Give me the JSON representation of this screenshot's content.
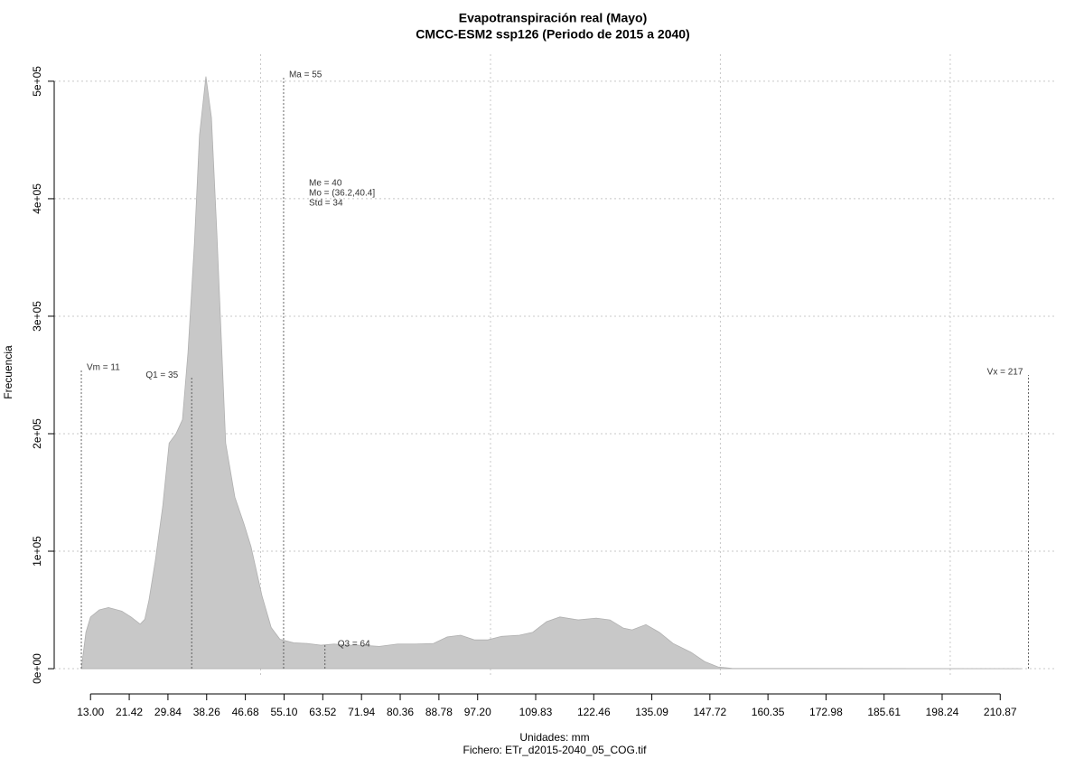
{
  "chart_data": {
    "type": "area",
    "title": "Evapotranspiración real (Mayo)",
    "subtitle": "CMCC-ESM2 ssp126 (Periodo de 2015 a 2040)",
    "xlabel": "Unidades: mm",
    "caption": "Fichero: ETr_d2015-2040_05_COG.tif",
    "ylabel": "Frecuencia",
    "color": "#c8c8c8",
    "x": [
      11,
      12,
      13,
      14.9,
      16.9,
      19.8,
      21.8,
      23.8,
      24.8,
      25.7,
      27.1,
      28.7,
      30.1,
      31.6,
      33.0,
      34.2,
      35.6,
      36.7,
      38.1,
      39.3,
      40.5,
      42.4,
      44.4,
      46.4,
      47.9,
      50.3,
      52.3,
      54.2,
      57.2,
      60.1,
      63.1,
      66.0,
      69.0,
      71.9,
      75.8,
      79.8,
      83.7,
      87.6,
      90.6,
      93.5,
      96.5,
      99.4,
      102.4,
      106.3,
      109.2,
      112.2,
      115.1,
      119.1,
      123.0,
      126.0,
      128.9,
      130.8,
      133.8,
      136.7,
      139.7,
      143.6,
      146.6,
      149.5,
      152.5,
      215.3
    ],
    "values": [
      0,
      31000,
      44000,
      50000,
      52000,
      49000,
      44000,
      38000,
      42000,
      58000,
      92000,
      138000,
      192000,
      200000,
      212000,
      269000,
      362000,
      454000,
      504000,
      469000,
      369000,
      192000,
      146000,
      123000,
      104000,
      62000,
      35000,
      25000,
      22000,
      21500,
      20000,
      21000,
      20000,
      20000,
      19000,
      21000,
      21000,
      21500,
      27000,
      28500,
      24500,
      24500,
      27500,
      28500,
      31000,
      40000,
      44000,
      41500,
      43000,
      41500,
      34500,
      33000,
      37500,
      31000,
      21500,
      14000,
      6000,
      1500,
      300,
      0
    ],
    "xlim": [
      5.1,
      223.2
    ],
    "ylim": [
      -21500,
      523000
    ],
    "xticks": [
      {
        "value": 13.0,
        "label": "13.00"
      },
      21.42,
      29.84,
      38.26,
      46.68,
      {
        "value": 55.1,
        "label": "55.10"
      },
      63.52,
      71.94,
      80.36,
      88.78,
      {
        "value": 97.2,
        "label": "97.20"
      },
      109.83,
      122.46,
      135.09,
      147.72,
      160.35,
      172.98,
      185.61,
      198.24,
      210.87
    ],
    "yticks": [
      {
        "value": 0,
        "label": "0e+00"
      },
      {
        "value": 100000,
        "label": "1e+05"
      },
      {
        "value": 200000,
        "label": "2e+05"
      },
      {
        "value": 300000,
        "label": "3e+05"
      },
      {
        "value": 400000,
        "label": "4e+05"
      },
      {
        "value": 500000,
        "label": "5e+05"
      }
    ],
    "xgrid": [
      50,
      100,
      150,
      200
    ],
    "grid": true,
    "stat_lines": [
      {
        "label": "Vm = 11",
        "x": 11,
        "y": 254000
      },
      {
        "label": "Q1 = 35",
        "x": 35,
        "y": 248000
      },
      {
        "label": "Ma = 55",
        "x": 55,
        "y": 504000
      },
      {
        "label": "Q3 = 64",
        "x": 64,
        "y": 20000
      },
      {
        "label": "Vx = 217",
        "x": 217,
        "y": 250000
      }
    ],
    "annotations": [
      "Me = 40",
      "Mo = (36.2,40.4]",
      "Std = 34"
    ]
  }
}
